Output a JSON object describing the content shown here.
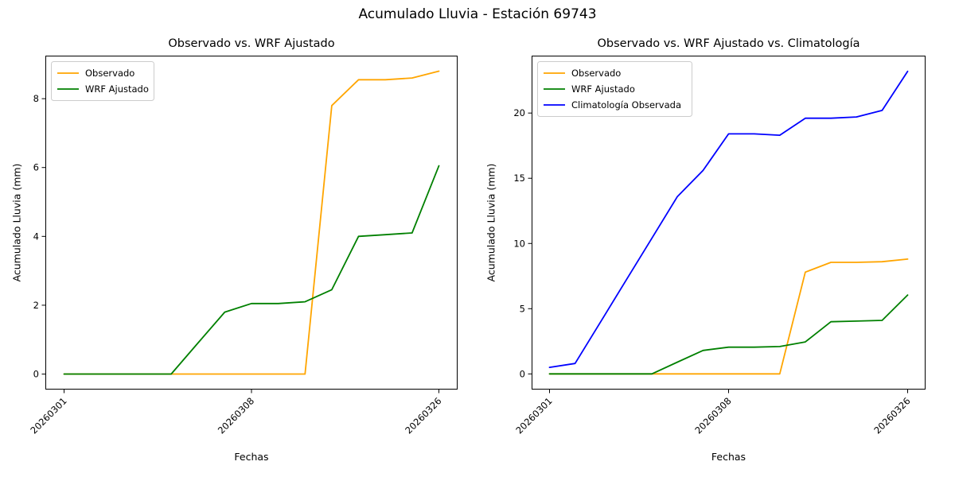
{
  "figure": {
    "title": "Acumulado Lluvia - Estación 69743"
  },
  "chart_data": [
    {
      "type": "line",
      "title": "Observado vs. WRF Ajustado",
      "xlabel": "Fechas",
      "ylabel": "Acumulado Lluvia (mm)",
      "grid": false,
      "legend_position": "upper left",
      "x": [
        0,
        1,
        2,
        3,
        4,
        5,
        6,
        7,
        8,
        9,
        10,
        11,
        12,
        13,
        14
      ],
      "x_tick_indices": [
        0,
        7,
        14
      ],
      "x_tick_labels": [
        "20260301",
        "20260308",
        "20260326"
      ],
      "x_tick_rotation": 45,
      "y_ticks": [
        0,
        2,
        4,
        6,
        8
      ],
      "xlim": [
        -0.7,
        14.7
      ],
      "ylim": [
        -0.45,
        9.25
      ],
      "series": [
        {
          "name": "Observado",
          "color": "#ffa500",
          "values": [
            0,
            0,
            0,
            0,
            0,
            0,
            0,
            0,
            0,
            0,
            7.8,
            8.55,
            8.55,
            8.6,
            8.8
          ]
        },
        {
          "name": "WRF Ajustado",
          "color": "#008000",
          "values": [
            0,
            0,
            0,
            0,
            0,
            0.9,
            1.8,
            2.05,
            2.05,
            2.1,
            2.45,
            4.0,
            4.05,
            4.1,
            6.05
          ]
        }
      ]
    },
    {
      "type": "line",
      "title": "Observado vs. WRF Ajustado vs. Climatología",
      "xlabel": "Fechas",
      "ylabel": "Acumulado Lluvia (mm)",
      "grid": false,
      "legend_position": "upper left",
      "x": [
        0,
        1,
        2,
        3,
        4,
        5,
        6,
        7,
        8,
        9,
        10,
        11,
        12,
        13,
        14
      ],
      "x_tick_indices": [
        0,
        7,
        14
      ],
      "x_tick_labels": [
        "20260301",
        "20260308",
        "20260326"
      ],
      "x_tick_rotation": 45,
      "y_ticks": [
        0,
        5,
        10,
        15,
        20
      ],
      "xlim": [
        -0.7,
        14.7
      ],
      "ylim": [
        -1.2,
        24.4
      ],
      "series": [
        {
          "name": "Observado",
          "color": "#ffa500",
          "values": [
            0,
            0,
            0,
            0,
            0,
            0,
            0,
            0,
            0,
            0,
            7.8,
            8.55,
            8.55,
            8.6,
            8.8
          ]
        },
        {
          "name": "WRF Ajustado",
          "color": "#008000",
          "values": [
            0,
            0,
            0,
            0,
            0,
            0.9,
            1.8,
            2.05,
            2.05,
            2.1,
            2.45,
            4.0,
            4.05,
            4.1,
            6.05
          ]
        },
        {
          "name": "Climatología Observada",
          "color": "#0000ff",
          "values": [
            0.5,
            0.8,
            4.0,
            7.2,
            10.4,
            13.6,
            15.6,
            18.4,
            18.4,
            18.3,
            19.6,
            19.6,
            19.7,
            20.2,
            23.2
          ]
        }
      ]
    }
  ]
}
